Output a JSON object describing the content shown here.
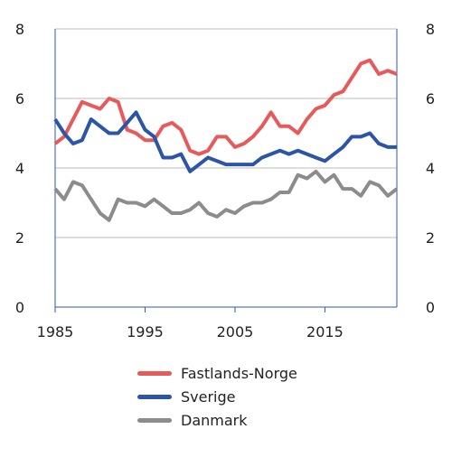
{
  "chart_data": {
    "type": "line",
    "x": [
      1985,
      1986,
      1987,
      1988,
      1989,
      1990,
      1991,
      1992,
      1993,
      1994,
      1995,
      1996,
      1997,
      1998,
      1999,
      2000,
      2001,
      2002,
      2003,
      2004,
      2005,
      2006,
      2007,
      2008,
      2009,
      2010,
      2011,
      2012,
      2013,
      2014,
      2015,
      2016,
      2017,
      2018,
      2019,
      2020,
      2021,
      2022,
      2023
    ],
    "series": [
      {
        "name": "Fastlands-Norge",
        "color": "#e8595a",
        "values": [
          4.7,
          4.9,
          5.4,
          5.9,
          5.8,
          5.7,
          6.0,
          5.9,
          5.1,
          5.0,
          4.8,
          4.8,
          5.2,
          5.3,
          5.1,
          4.5,
          4.4,
          4.5,
          4.9,
          4.9,
          4.6,
          4.7,
          4.9,
          5.2,
          5.6,
          5.2,
          5.2,
          5.0,
          5.4,
          5.7,
          5.8,
          6.1,
          6.2,
          6.6,
          7.0,
          7.1,
          6.7,
          6.8,
          6.7
        ]
      },
      {
        "name": "Sverige",
        "color": "#2d55a7",
        "values": [
          5.4,
          5.0,
          4.7,
          4.8,
          5.4,
          5.2,
          5.0,
          5.0,
          5.3,
          5.6,
          5.1,
          4.9,
          4.3,
          4.3,
          4.4,
          3.9,
          4.1,
          4.3,
          4.2,
          4.1,
          4.1,
          4.1,
          4.1,
          4.3,
          4.4,
          4.5,
          4.4,
          4.5,
          4.4,
          4.3,
          4.2,
          4.4,
          4.6,
          4.9,
          4.9,
          5.0,
          4.7,
          4.6,
          4.6
        ]
      },
      {
        "name": "Danmark",
        "color": "#8c8c8c",
        "values": [
          3.4,
          3.1,
          3.6,
          3.5,
          3.1,
          2.7,
          2.5,
          3.1,
          3.0,
          3.0,
          2.9,
          3.1,
          2.9,
          2.7,
          2.7,
          2.8,
          3.0,
          2.7,
          2.6,
          2.8,
          2.7,
          2.9,
          3.0,
          3.0,
          3.1,
          3.3,
          3.3,
          3.8,
          3.7,
          3.9,
          3.6,
          3.8,
          3.4,
          3.4,
          3.2,
          3.6,
          3.5,
          3.2,
          3.4
        ]
      }
    ],
    "xticks": [
      "1985",
      "1995",
      "2005",
      "2015"
    ],
    "xtick_values": [
      1985,
      1995,
      2005,
      2015
    ],
    "yticks": [
      "0",
      "2",
      "4",
      "6",
      "8"
    ],
    "ytick_values": [
      0,
      2,
      4,
      6,
      8
    ],
    "ylim": [
      0,
      8
    ],
    "xlim": [
      1985,
      2023
    ],
    "grid": true,
    "secondary_y_axis": true,
    "legend_position": "bottom",
    "axis_color": "#2e5aa8",
    "grid_color": "#bbbbbb"
  }
}
